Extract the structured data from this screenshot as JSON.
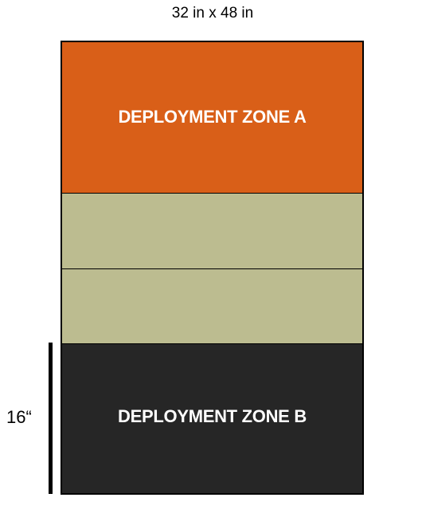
{
  "title": "32 in x 48 in",
  "zones": {
    "a": {
      "label": "DEPLOYMENT ZONE A",
      "color": "#d95f18"
    },
    "b": {
      "label": "DEPLOYMENT ZONE B",
      "color": "#262626"
    },
    "middle_color": "#bcbc90"
  },
  "dimension": {
    "label": "16“"
  }
}
